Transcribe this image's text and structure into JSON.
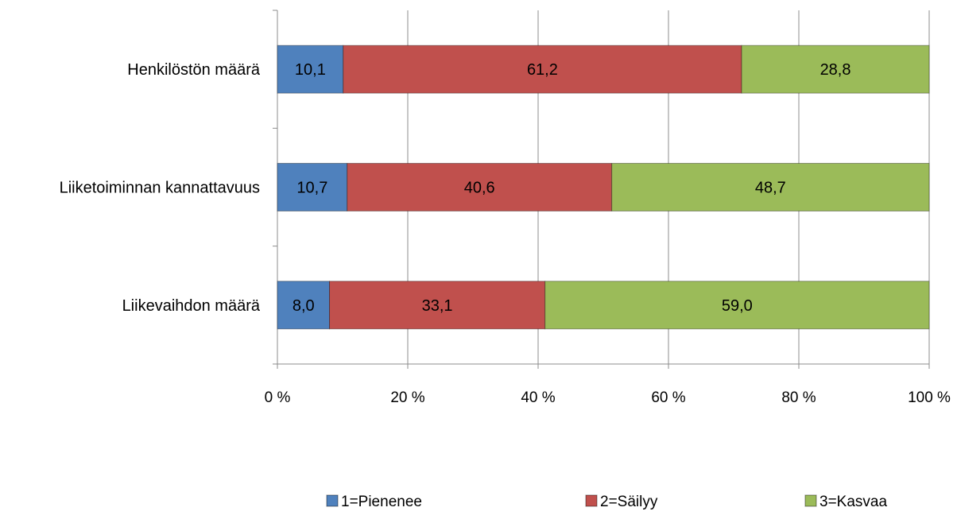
{
  "chart_data": {
    "type": "bar",
    "orientation": "horizontal",
    "stacked": "percent",
    "categories": [
      "Henkilöstön määrä",
      "Liiketoiminnan kannattavuus",
      "Liikevaihdon määrä"
    ],
    "series": [
      {
        "name": "1=Pienenee",
        "color": "#4f81bd",
        "values": [
          10.1,
          10.7,
          8.0
        ],
        "labels": [
          "10,1",
          "10,7",
          "8,0"
        ]
      },
      {
        "name": "2=Säilyy",
        "color": "#c0504d",
        "values": [
          61.2,
          40.6,
          33.1
        ],
        "labels": [
          "61,2",
          "40,6",
          "33,1"
        ]
      },
      {
        "name": "3=Kasvaa",
        "color": "#9bbb59",
        "values": [
          28.8,
          48.7,
          59.0
        ],
        "labels": [
          "28,8",
          "48,7",
          "59,0"
        ]
      }
    ],
    "xticks": [
      "0 %",
      "20 %",
      "40 %",
      "60 %",
      "80 %",
      "100 %"
    ],
    "xlim": [
      0,
      100
    ],
    "grid": true,
    "legend": "bottom",
    "title": "",
    "xlabel": "",
    "ylabel": ""
  }
}
